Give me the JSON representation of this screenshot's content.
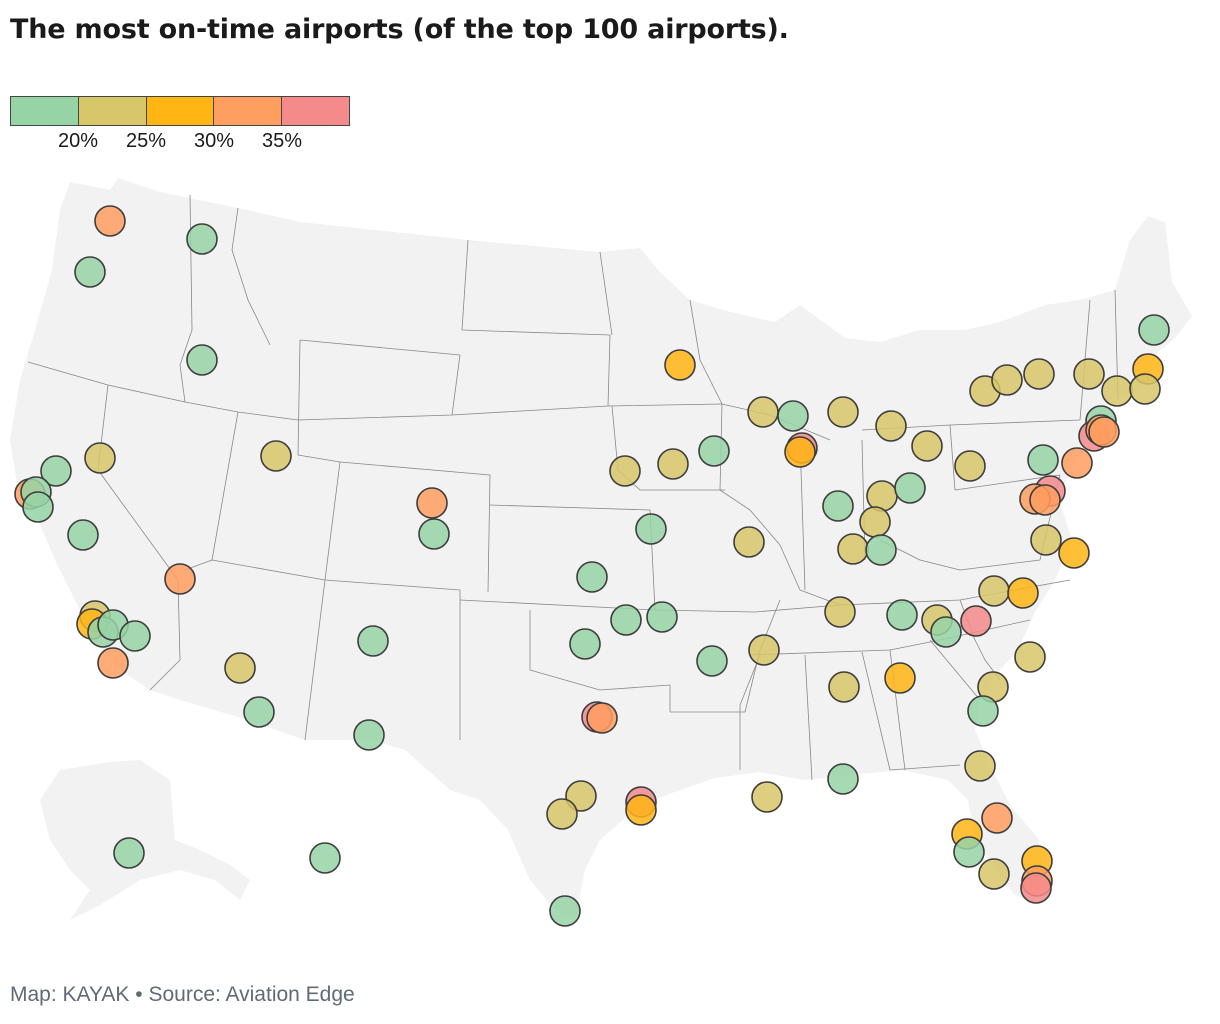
{
  "title": "The most on-time airports (of the top 100 airports).",
  "legend": {
    "colors": [
      "#96d4a5",
      "#d7c768",
      "#ffb514",
      "#ff9e60",
      "#f58a8a"
    ],
    "ticks": [
      "20%",
      "25%",
      "30%",
      "35%"
    ]
  },
  "footer": "Map: KAYAK • Source: Aviation Edge",
  "map": {
    "land_color": "#f2f2f2",
    "border_color": "#888888",
    "airports": [
      {
        "region": "pnw",
        "bin": 3
      },
      {
        "region": "pnw",
        "bin": 0
      },
      {
        "region": "pnw",
        "bin": 0
      },
      {
        "region": "idaho",
        "bin": 0
      },
      {
        "region": "nca",
        "bin": 0
      },
      {
        "region": "nca",
        "bin": 3
      },
      {
        "region": "nca",
        "bin": 0
      },
      {
        "region": "nca",
        "bin": 0
      },
      {
        "region": "nca",
        "bin": 0
      },
      {
        "region": "nev",
        "bin": 1
      },
      {
        "region": "nev",
        "bin": 3
      },
      {
        "region": "sca",
        "bin": 1
      },
      {
        "region": "sca",
        "bin": 2
      },
      {
        "region": "sca",
        "bin": 0
      },
      {
        "region": "sca",
        "bin": 0
      },
      {
        "region": "sca",
        "bin": 0
      },
      {
        "region": "sca",
        "bin": 3
      },
      {
        "region": "ut",
        "bin": 1
      },
      {
        "region": "co",
        "bin": 3
      },
      {
        "region": "co",
        "bin": 0
      },
      {
        "region": "az",
        "bin": 1
      },
      {
        "region": "az",
        "bin": 0
      },
      {
        "region": "nm",
        "bin": 0
      },
      {
        "region": "tx",
        "bin": 0
      },
      {
        "region": "mn",
        "bin": 2
      },
      {
        "region": "mw",
        "bin": 1
      },
      {
        "region": "mw",
        "bin": 1
      },
      {
        "region": "mw",
        "bin": 0
      },
      {
        "region": "ks",
        "bin": 0
      },
      {
        "region": "ks",
        "bin": 0
      },
      {
        "region": "ok",
        "bin": 0
      },
      {
        "region": "ok",
        "bin": 0
      },
      {
        "region": "ok",
        "bin": 0
      },
      {
        "region": "ar",
        "bin": 0
      },
      {
        "region": "tx",
        "bin": 4
      },
      {
        "region": "tx",
        "bin": 3
      },
      {
        "region": "tx",
        "bin": 1
      },
      {
        "region": "tx",
        "bin": 1
      },
      {
        "region": "tx",
        "bin": 4
      },
      {
        "region": "tx",
        "bin": 2
      },
      {
        "region": "tx",
        "bin": 0
      },
      {
        "region": "il",
        "bin": 1
      },
      {
        "region": "il",
        "bin": 0
      },
      {
        "region": "il",
        "bin": 4
      },
      {
        "region": "il",
        "bin": 2
      },
      {
        "region": "mo",
        "bin": 1
      },
      {
        "region": "mi",
        "bin": 1
      },
      {
        "region": "oh",
        "bin": 1
      },
      {
        "region": "oh",
        "bin": 1
      },
      {
        "region": "in",
        "bin": 0
      },
      {
        "region": "oh",
        "bin": 1
      },
      {
        "region": "oh",
        "bin": 1
      },
      {
        "region": "oh",
        "bin": 0
      },
      {
        "region": "ky",
        "bin": 1
      },
      {
        "region": "ky",
        "bin": 0
      },
      {
        "region": "tn",
        "bin": 1
      },
      {
        "region": "tn",
        "bin": 0
      },
      {
        "region": "tn",
        "bin": 1
      },
      {
        "region": "ms",
        "bin": 1
      },
      {
        "region": "al",
        "bin": 1
      },
      {
        "region": "ga",
        "bin": 2
      },
      {
        "region": "la",
        "bin": 1
      },
      {
        "region": "fl",
        "bin": 0
      },
      {
        "region": "ne",
        "bin": 1
      },
      {
        "region": "ne",
        "bin": 1
      },
      {
        "region": "ne",
        "bin": 1
      },
      {
        "region": "ne",
        "bin": 1
      },
      {
        "region": "ne",
        "bin": 0
      },
      {
        "region": "ne",
        "bin": 2
      },
      {
        "region": "ne",
        "bin": 1
      },
      {
        "region": "ne",
        "bin": 1
      },
      {
        "region": "ne",
        "bin": 0
      },
      {
        "region": "ne",
        "bin": 4
      },
      {
        "region": "ne",
        "bin": 3
      },
      {
        "region": "ne",
        "bin": 3
      },
      {
        "region": "pa",
        "bin": 1
      },
      {
        "region": "dc",
        "bin": 0
      },
      {
        "region": "dc",
        "bin": 3
      },
      {
        "region": "dc",
        "bin": 4
      },
      {
        "region": "dc",
        "bin": 3
      },
      {
        "region": "dc",
        "bin": 3
      },
      {
        "region": "va",
        "bin": 1
      },
      {
        "region": "va",
        "bin": 2
      },
      {
        "region": "nc",
        "bin": 1
      },
      {
        "region": "nc",
        "bin": 2
      },
      {
        "region": "nc",
        "bin": 0
      },
      {
        "region": "nc",
        "bin": 4
      },
      {
        "region": "nc",
        "bin": 1
      },
      {
        "region": "sc",
        "bin": 1
      },
      {
        "region": "ga",
        "bin": 0
      },
      {
        "region": "fl",
        "bin": 1
      },
      {
        "region": "fl",
        "bin": 3
      },
      {
        "region": "fl",
        "bin": 2
      },
      {
        "region": "fl",
        "bin": 0
      },
      {
        "region": "fl",
        "bin": 1
      },
      {
        "region": "fl",
        "bin": 2
      },
      {
        "region": "fl",
        "bin": 3
      },
      {
        "region": "fl",
        "bin": 4
      },
      {
        "region": "ak",
        "bin": 0
      },
      {
        "region": "ak",
        "bin": 0
      }
    ]
  }
}
